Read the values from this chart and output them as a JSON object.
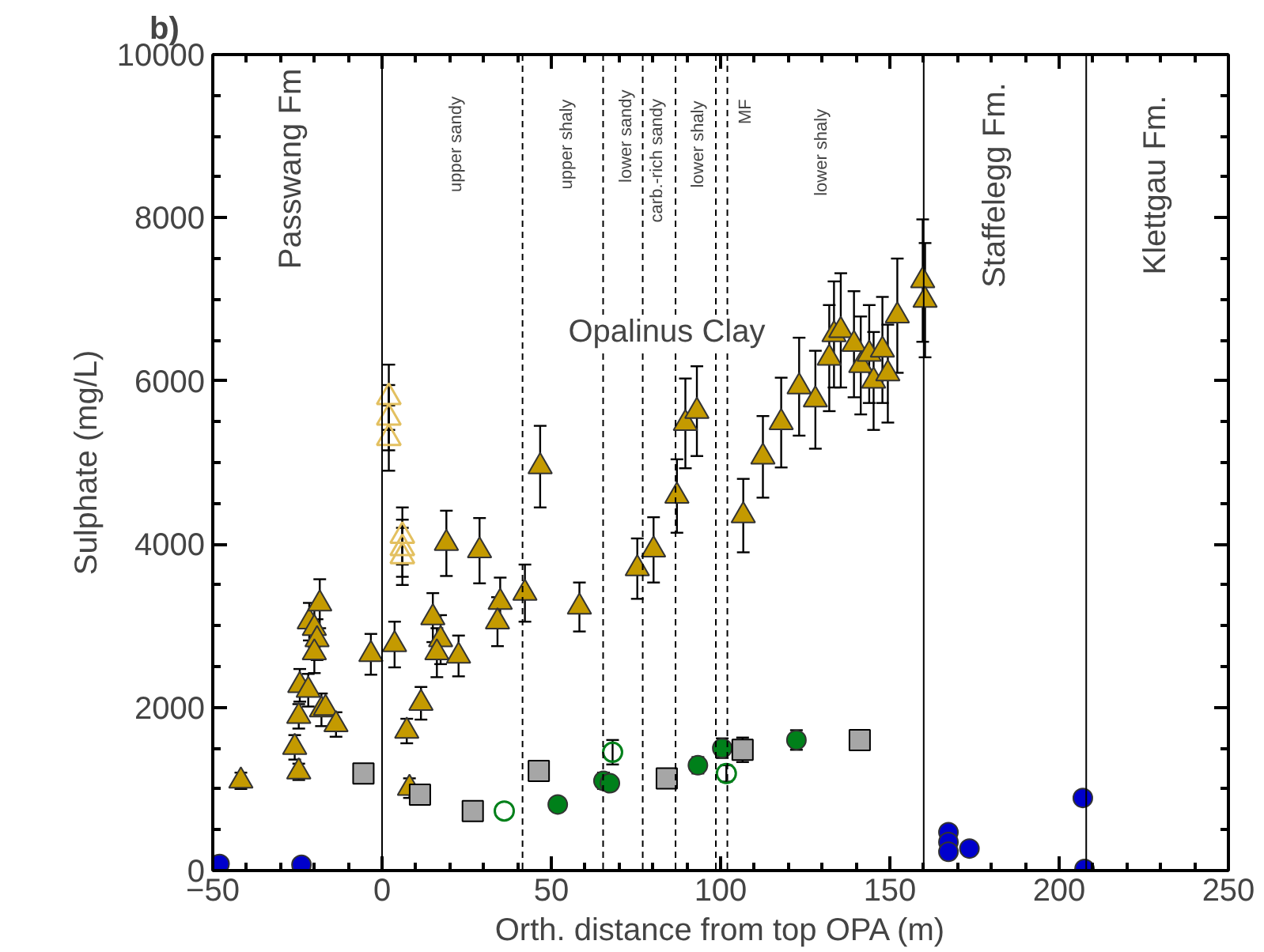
{
  "chart_data": {
    "type": "scatter",
    "title": "b)",
    "xlabel": "Orth. distance from top OPA (m)",
    "ylabel": "Sulphate (mg/L)",
    "xlim": [
      -50,
      250
    ],
    "xticks": [
      -50,
      0,
      50,
      100,
      150,
      200,
      250
    ],
    "ylim": [
      0,
      10000
    ],
    "yticks": [
      0,
      2000,
      4000,
      6000,
      8000,
      10000
    ],
    "grid": false,
    "series": [
      {
        "marker": "triangle",
        "color": "#c49a00",
        "x": [
          -41.7,
          -24.6,
          -25.8,
          -24.6,
          -24.3,
          -21.8,
          -21.5,
          -20,
          -18.4,
          -19.2,
          -20,
          -17.9,
          -16.7,
          -13.6,
          -3.3,
          3.7,
          7.3,
          8.1,
          11.5,
          19,
          15,
          17.3,
          16.2,
          22.6,
          28.8,
          34.9,
          34.1,
          42.2,
          46.7,
          58.3,
          75.4,
          80.2,
          87.1,
          89.6,
          93,
          106.7,
          112.5,
          117.9,
          123.2,
          128,
          132.1,
          133.5,
          135.5,
          139.4,
          141.4,
          143.9,
          145.2,
          147.8,
          149.4,
          152.2,
          159.7,
          160.4
        ],
        "values": [
          1100,
          1210,
          1510,
          1890,
          2270,
          2210,
          3050,
          2970,
          3270,
          2830,
          2670,
          1970,
          1990,
          1790,
          2650,
          2770,
          1710,
          1010,
          2050,
          4010,
          3100,
          2830,
          2670,
          2630,
          3920,
          3290,
          3050,
          3400,
          4950,
          3230,
          3700,
          3930,
          4590,
          5480,
          5630,
          4350,
          5070,
          5490,
          5930,
          5770,
          6280,
          6570,
          6620,
          6450,
          6190,
          6330,
          6000,
          6380,
          6090,
          6800,
          7230,
          6990
        ],
        "errors": [
          100,
          100,
          150,
          150,
          200,
          200,
          230,
          230,
          300,
          250,
          250,
          200,
          null,
          150,
          250,
          280,
          150,
          120,
          200,
          400,
          300,
          300,
          300,
          250,
          400,
          300,
          300,
          350,
          500,
          300,
          370,
          400,
          450,
          550,
          550,
          450,
          500,
          550,
          600,
          600,
          650,
          650,
          700,
          650,
          600,
          600,
          600,
          650,
          600,
          700,
          750,
          700
        ]
      },
      {
        "marker": "triangle_open",
        "color": "#e3c060",
        "x": [
          2,
          2,
          2,
          6,
          6,
          6
        ],
        "values": [
          5800,
          5550,
          5300,
          4100,
          3950,
          3850
        ],
        "errors": [
          400,
          400,
          400,
          350,
          350,
          350
        ]
      },
      {
        "marker": "circle",
        "color": "#0000cc",
        "x": [
          -48,
          -23.8,
          167.3,
          167.3,
          167.3,
          173.5,
          207,
          207.5
        ],
        "values": [
          80,
          70,
          470,
          350,
          230,
          270,
          890,
          20
        ]
      },
      {
        "marker": "circle",
        "color": "#00801a",
        "x": [
          51.9,
          65.4,
          67.3,
          93.3,
          100.5,
          122.4
        ],
        "values": [
          810,
          1100,
          1070,
          1290,
          1500,
          1600
        ],
        "errors": [
          80,
          100,
          null,
          100,
          120,
          120
        ]
      },
      {
        "marker": "circle_open",
        "color": "#00801a",
        "x": [
          36.1,
          68.1,
          101.7
        ],
        "values": [
          730,
          1450,
          1190
        ],
        "errors": [
          null,
          150,
          100
        ]
      },
      {
        "marker": "square",
        "color": "#a6a6a6",
        "x": [
          -5.5,
          11.2,
          26.8,
          46.3,
          84.1,
          106.5,
          141.1
        ],
        "values": [
          1190,
          930,
          730,
          1220,
          1130,
          1480,
          1600
        ],
        "errors": [
          80,
          null,
          null,
          100,
          null,
          150,
          120
        ]
      }
    ],
    "ref_lines": [
      {
        "axis": "x",
        "value": 0,
        "line_style": "solid"
      },
      {
        "axis": "x",
        "value": 160,
        "line_style": "solid"
      },
      {
        "axis": "x",
        "value": 208,
        "line_style": "solid"
      },
      {
        "axis": "x",
        "value": 41.5,
        "line_style": "dashed"
      },
      {
        "axis": "x",
        "value": 65.3,
        "line_style": "dashed"
      },
      {
        "axis": "x",
        "value": 77,
        "line_style": "dashed"
      },
      {
        "axis": "x",
        "value": 86.7,
        "line_style": "dashed"
      },
      {
        "axis": "x",
        "value": 98.6,
        "line_style": "dashed"
      },
      {
        "axis": "x",
        "value": 102,
        "line_style": "dashed"
      }
    ],
    "annotations": [
      "Opalinus Clay",
      "Passwang Fm",
      "Staffelegg Fm.",
      "Klettgau Fm.",
      "upper sandy",
      "upper shaly",
      "lower sandy",
      "carb.-rich sandy",
      "lower shaly",
      "MF",
      "lower shaly"
    ]
  }
}
